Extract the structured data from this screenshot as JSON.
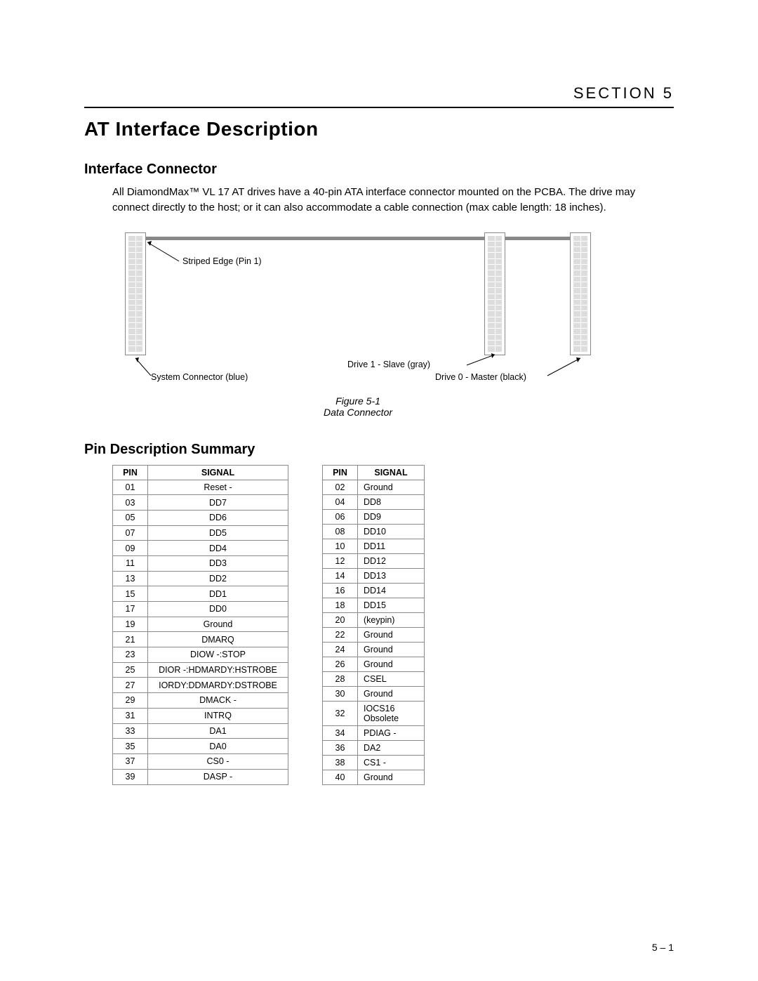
{
  "header": {
    "section_label": "SECTION 5",
    "title": "AT Interface Description"
  },
  "interface_connector": {
    "heading": "Interface Connector",
    "paragraph": "All DiamondMax™ VL 17 AT drives have a 40-pin ATA interface connector mounted on the PCBA. The drive may connect directly to the host; or it can also accommodate a cable connection (max cable length: 18 inches)."
  },
  "figure": {
    "caption_line1": "Figure 5-1",
    "caption_line2": "Data Connector",
    "labels": {
      "striped_edge": "Striped Edge (Pin 1)",
      "system_connector": "System Connector (blue)",
      "drive1_slave": "Drive 1 - Slave (gray)",
      "drive0_master": "Drive 0 - Master (black)"
    },
    "colors": {
      "cable": "#888888",
      "connector_border": "#888888",
      "pin_fill": "#dddddd",
      "line": "#000000"
    }
  },
  "pin_summary": {
    "heading": "Pin Description Summary",
    "columns": [
      "PIN",
      "SIGNAL"
    ],
    "left_rows": [
      [
        "01",
        "Reset -"
      ],
      [
        "03",
        "DD7"
      ],
      [
        "05",
        "DD6"
      ],
      [
        "07",
        "DD5"
      ],
      [
        "09",
        "DD4"
      ],
      [
        "11",
        "DD3"
      ],
      [
        "13",
        "DD2"
      ],
      [
        "15",
        "DD1"
      ],
      [
        "17",
        "DD0"
      ],
      [
        "19",
        "Ground"
      ],
      [
        "21",
        "DMARQ"
      ],
      [
        "23",
        "DIOW -:STOP"
      ],
      [
        "25",
        "DIOR -:HDMARDY:HSTROBE"
      ],
      [
        "27",
        "IORDY:DDMARDY:DSTROBE"
      ],
      [
        "29",
        "DMACK -"
      ],
      [
        "31",
        "INTRQ"
      ],
      [
        "33",
        "DA1"
      ],
      [
        "35",
        "DA0"
      ],
      [
        "37",
        "CS0 -"
      ],
      [
        "39",
        "DASP -"
      ]
    ],
    "right_rows": [
      [
        "02",
        "Ground"
      ],
      [
        "04",
        "DD8"
      ],
      [
        "06",
        "DD9"
      ],
      [
        "08",
        "DD10"
      ],
      [
        "10",
        "DD11"
      ],
      [
        "12",
        "DD12"
      ],
      [
        "14",
        "DD13"
      ],
      [
        "16",
        "DD14"
      ],
      [
        "18",
        "DD15"
      ],
      [
        "20",
        "(keypin)"
      ],
      [
        "22",
        "Ground"
      ],
      [
        "24",
        "Ground"
      ],
      [
        "26",
        "Ground"
      ],
      [
        "28",
        "CSEL"
      ],
      [
        "30",
        "Ground"
      ],
      [
        "32",
        "IOCS16 Obsolete"
      ],
      [
        "34",
        "PDIAG -"
      ],
      [
        "36",
        "DA2"
      ],
      [
        "38",
        "CS1 -"
      ],
      [
        "40",
        "Ground"
      ]
    ]
  },
  "footer": {
    "page": "5 – 1"
  }
}
